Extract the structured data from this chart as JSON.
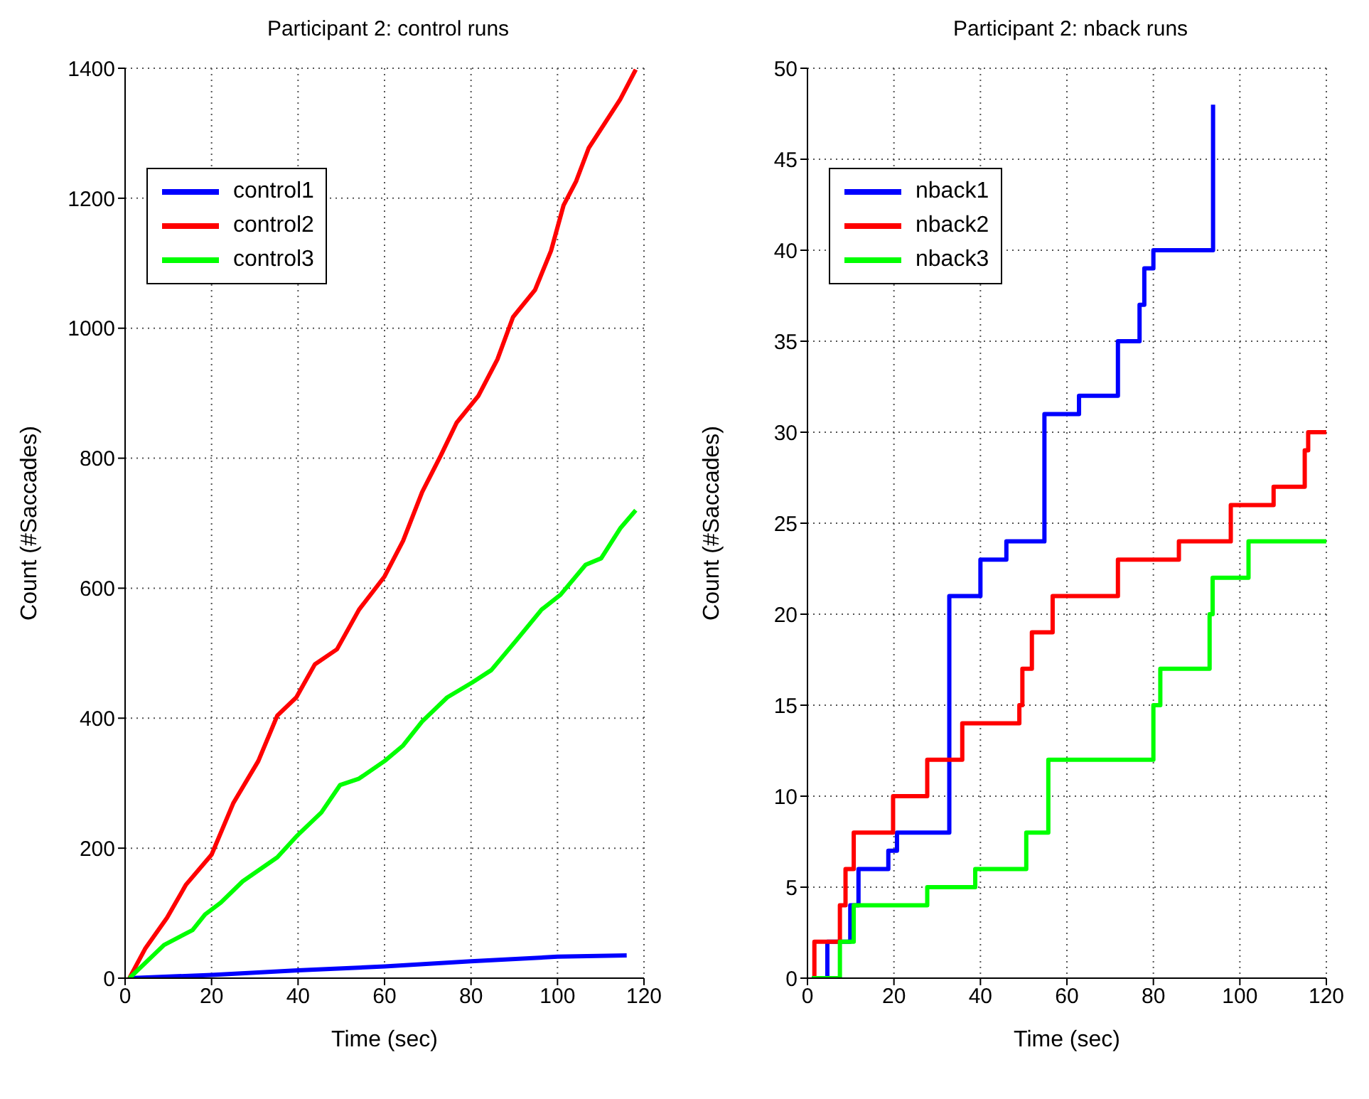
{
  "chart_data": [
    {
      "type": "line",
      "title": "Participant 2: control runs",
      "xlabel": "Time (sec)",
      "ylabel": "Count (#Saccades)",
      "xlim": [
        0,
        120
      ],
      "xticks": [
        0,
        20,
        40,
        60,
        80,
        100,
        120
      ],
      "ylim": [
        0,
        1400
      ],
      "yticks": [
        0,
        200,
        400,
        600,
        800,
        1000,
        1200,
        1400
      ],
      "grid": true,
      "legend": "top left",
      "line_style": "solid",
      "series": [
        {
          "name": "control1",
          "color": "#0000ff",
          "x": [
            1,
            20,
            40,
            60,
            80,
            100,
            116
          ],
          "values": [
            0,
            5,
            12,
            18,
            26,
            33,
            35
          ]
        },
        {
          "name": "control2",
          "color": "#ff0000",
          "x": [
            1,
            4.7,
            9.7,
            14.1,
            20,
            25,
            30.8,
            35.2,
            39.6,
            43.9,
            49,
            54.1,
            60,
            64.3,
            68.7,
            73,
            76.7,
            81.7,
            86.1,
            89.7,
            94.8,
            98.5,
            101.4,
            104.3,
            107.2,
            110.8,
            114.5,
            118.1
          ],
          "values": [
            0,
            46,
            93,
            144,
            190,
            269,
            334,
            404,
            432,
            483,
            506,
            567,
            618,
            673,
            748,
            804,
            855,
            896,
            952,
            1017,
            1059,
            1119,
            1189,
            1226,
            1277,
            1314,
            1352,
            1398
          ]
        },
        {
          "name": "control3",
          "color": "#00ff00",
          "x": [
            1,
            9,
            15.6,
            18.5,
            22.1,
            27.2,
            35.2,
            39.6,
            45.4,
            49.7,
            54.1,
            60,
            64.3,
            68.7,
            74.5,
            80.3,
            84.7,
            90.5,
            96.3,
            100.7,
            106.5,
            110.1,
            114.5,
            118.1
          ],
          "values": [
            0,
            51,
            74,
            98,
            116,
            149,
            186,
            218,
            255,
            297,
            307,
            334,
            358,
            395,
            432,
            455,
            474,
            520,
            567,
            590,
            636,
            646,
            692,
            720
          ]
        }
      ]
    },
    {
      "type": "step",
      "title": "Participant 2: nback runs",
      "xlabel": "Time (sec)",
      "ylabel": "Count (#Saccades)",
      "xlim": [
        0,
        120
      ],
      "xticks": [
        0,
        20,
        40,
        60,
        80,
        100,
        120
      ],
      "ylim": [
        0,
        50
      ],
      "yticks": [
        0,
        5,
        10,
        15,
        20,
        25,
        30,
        35,
        40,
        45,
        50
      ],
      "grid": true,
      "legend": "top left",
      "line_style": "solid",
      "series": [
        {
          "name": "nback1",
          "color": "#0000ff",
          "x": [
            1,
            4.6,
            9.9,
            11.8,
            18.7,
            20.7,
            32.8,
            40,
            46,
            54.8,
            62.8,
            71.8,
            76.8,
            77.9,
            80,
            93.8
          ],
          "values": [
            0,
            2,
            4,
            6,
            7,
            8,
            21,
            23,
            24,
            31,
            32,
            35,
            37,
            39,
            40,
            48
          ]
        },
        {
          "name": "nback2",
          "color": "#ff0000",
          "x": [
            1.1,
            1.6,
            7.5,
            8.8,
            10.7,
            19.8,
            27.7,
            35.8,
            49,
            49.7,
            51.9,
            56.7,
            71.8,
            85.9,
            97.9,
            107.8,
            115,
            115.8,
            120
          ],
          "values": [
            0,
            2,
            4,
            6,
            8,
            10,
            12,
            14,
            15,
            17,
            19,
            21,
            23,
            24,
            26,
            27,
            29,
            30,
            30
          ]
        },
        {
          "name": "nback3",
          "color": "#00ff00",
          "x": [
            1,
            7.5,
            10.7,
            27.7,
            38.8,
            50.6,
            55.7,
            80,
            81.6,
            93,
            93.7,
            102,
            120
          ],
          "values": [
            0,
            2,
            4,
            5,
            6,
            8,
            12,
            15,
            17,
            20,
            22,
            24,
            24
          ]
        }
      ]
    }
  ]
}
